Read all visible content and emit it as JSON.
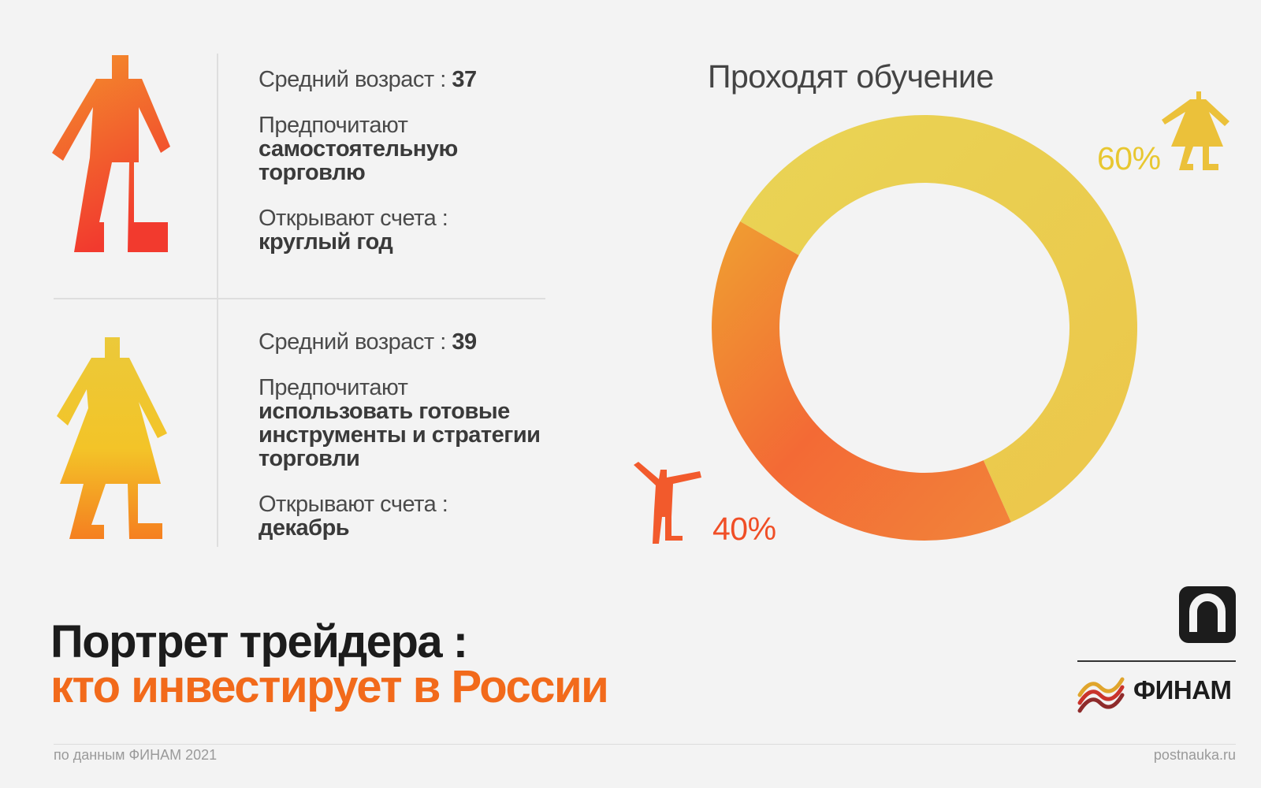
{
  "man": {
    "age_label": "Средний возраст : ",
    "age_value": "37",
    "pref_label": "Предпочитают",
    "pref_value_1": "самостоятельную",
    "pref_value_2": "торговлю",
    "accounts_label": "Открывают счета :",
    "accounts_value": "круглый год"
  },
  "woman": {
    "age_label": "Средний возраст : ",
    "age_value": "39",
    "pref_label": "Предпочитают",
    "pref_value_1": "использовать готовые",
    "pref_value_2": "инструменты и стратегии",
    "pref_value_3": "торговли",
    "accounts_label": "Открывают счета :",
    "accounts_value": "декабрь"
  },
  "headline": {
    "line1": "Портрет трейдера :",
    "line2": "кто инвестирует в России"
  },
  "footer": {
    "source": "по данным ФИНАМ 2021",
    "site": "postnauka.ru"
  },
  "logos": {
    "finam": "ФИНАМ",
    "postnauka": "п"
  },
  "colors": {
    "orange": "#f26a1b",
    "red": "#f04a30",
    "yellow": "#ead04a",
    "dark": "#1c1c1c"
  },
  "chart_data": {
    "type": "pie",
    "title": "Проходят обучение",
    "slices": [
      {
        "label": "60%",
        "value": 60,
        "color": "#ead04a",
        "icon": "woman-figure-icon"
      },
      {
        "label": "40%",
        "value": 40,
        "color": "#f06234",
        "icon": "man-figure-icon"
      }
    ]
  }
}
